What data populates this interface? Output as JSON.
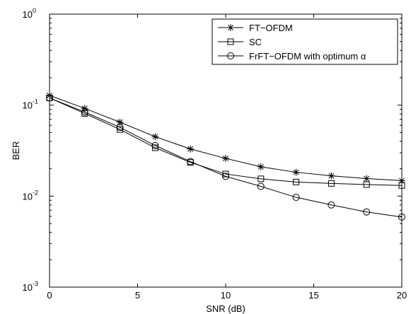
{
  "chart_data": {
    "type": "line",
    "xlabel": "SNR (dB)",
    "ylabel": "BER",
    "xscale": "linear",
    "yscale": "log",
    "xlim": [
      0,
      20
    ],
    "ylim": [
      0.001,
      1
    ],
    "xticks": [
      0,
      5,
      10,
      15,
      20
    ],
    "yticks": [
      {
        "value": 0.001,
        "base": "10",
        "exp": "-3"
      },
      {
        "value": 0.01,
        "base": "10",
        "exp": "-2"
      },
      {
        "value": 0.1,
        "base": "10",
        "exp": "-1"
      },
      {
        "value": 1,
        "base": "10",
        "exp": "0"
      }
    ],
    "grid": false,
    "legend_position": "top-right",
    "x": [
      0,
      2,
      4,
      6,
      8,
      10,
      12,
      14,
      16,
      18,
      20
    ],
    "series": [
      {
        "name": "FT−OFDM",
        "marker": "star",
        "color": "#000000",
        "values": [
          0.128,
          0.092,
          0.065,
          0.045,
          0.033,
          0.026,
          0.021,
          0.0183,
          0.0167,
          0.0156,
          0.0148
        ]
      },
      {
        "name": "SC",
        "marker": "square",
        "color": "#000000",
        "values": [
          0.12,
          0.081,
          0.054,
          0.034,
          0.0235,
          0.0175,
          0.0155,
          0.0143,
          0.0138,
          0.0134,
          0.0131
        ]
      },
      {
        "name": "FrFT−OFDM with optimum α",
        "marker": "circle",
        "color": "#000000",
        "values": [
          0.12,
          0.084,
          0.057,
          0.036,
          0.024,
          0.0165,
          0.0128,
          0.0097,
          0.008,
          0.0067,
          0.0059
        ]
      }
    ]
  }
}
